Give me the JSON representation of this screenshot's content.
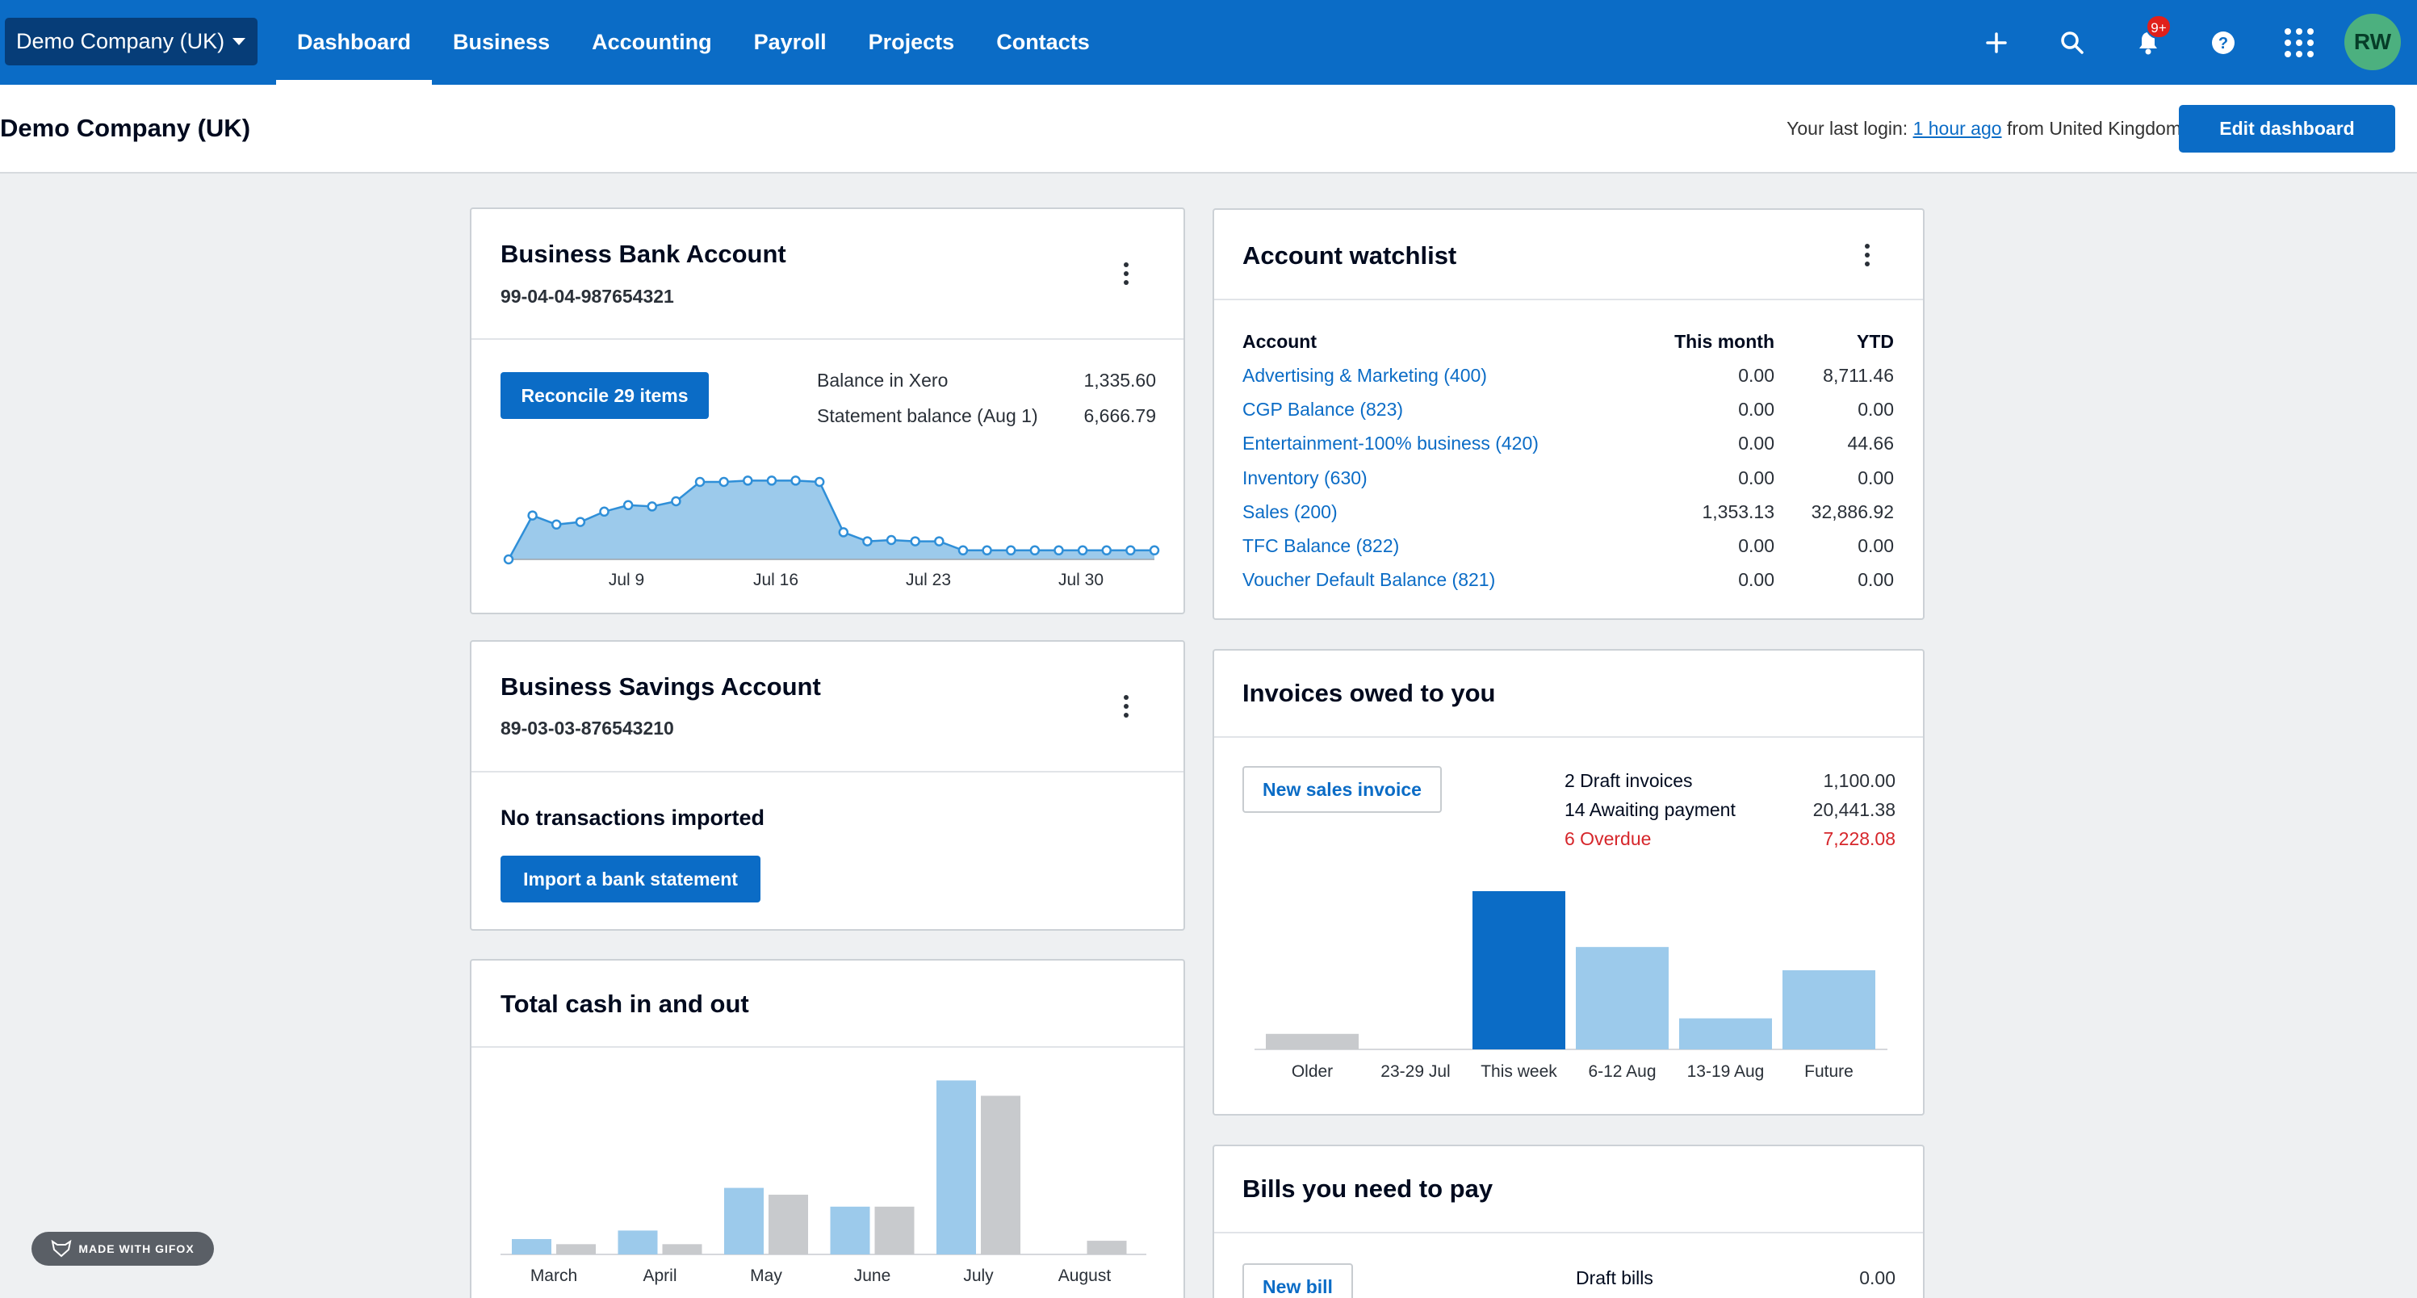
{
  "topnav": {
    "org_name": "Demo Company (UK)",
    "links": [
      "Dashboard",
      "Business",
      "Accounting",
      "Payroll",
      "Projects",
      "Contacts"
    ],
    "notifications_badge": "9+",
    "avatar_initials": "RW"
  },
  "subheader": {
    "title": "Demo Company (UK)",
    "last_login_prefix": "Your last login:",
    "last_login_link": "1 hour ago",
    "last_login_suffix": "from United Kingdom",
    "edit_button": "Edit dashboard"
  },
  "bank_account": {
    "title": "Business Bank Account",
    "number": "99-04-04-987654321",
    "reconcile_button": "Reconcile 29 items",
    "balance_xero_label": "Balance in Xero",
    "balance_xero_value": "1,335.60",
    "statement_label": "Statement balance (Aug 1)",
    "statement_value": "6,666.79",
    "chart_xlabels": [
      "Jul 9",
      "Jul 16",
      "Jul 23",
      "Jul 30"
    ]
  },
  "savings_account": {
    "title": "Business Savings Account",
    "number": "89-03-03-876543210",
    "empty_text": "No transactions imported",
    "import_button": "Import a bank statement"
  },
  "cash": {
    "title": "Total cash in and out"
  },
  "watchlist": {
    "title": "Account watchlist",
    "headers": [
      "Account",
      "This month",
      "YTD"
    ],
    "rows": [
      {
        "account": "Advertising & Marketing (400)",
        "month": "0.00",
        "ytd": "8,711.46"
      },
      {
        "account": "CGP Balance (823)",
        "month": "0.00",
        "ytd": "0.00"
      },
      {
        "account": "Entertainment-100% business (420)",
        "month": "0.00",
        "ytd": "44.66"
      },
      {
        "account": "Inventory (630)",
        "month": "0.00",
        "ytd": "0.00"
      },
      {
        "account": "Sales (200)",
        "month": "1,353.13",
        "ytd": "32,886.92"
      },
      {
        "account": "TFC Balance (822)",
        "month": "0.00",
        "ytd": "0.00"
      },
      {
        "account": "Voucher Default Balance (821)",
        "month": "0.00",
        "ytd": "0.00"
      }
    ]
  },
  "invoices": {
    "title": "Invoices owed to you",
    "new_button": "New sales invoice",
    "draft_label": "2 Draft invoices",
    "draft_value": "1,100.00",
    "awaiting_label": "14 Awaiting payment",
    "awaiting_value": "20,441.38",
    "overdue_label": "6 Overdue",
    "overdue_value": "7,228.08"
  },
  "bills": {
    "title": "Bills you need to pay",
    "new_button": "New bill",
    "draft_label": "Draft bills",
    "draft_value": "0.00"
  },
  "gifox": "MADE WITH GIFOX",
  "colors": {
    "nav_blue": "#0b6cc6",
    "org_switch": "#063d78",
    "light_blue_bar": "#9ccaeb",
    "grey_bar": "#c8cacd",
    "overdue_red": "#d6262b",
    "avatar_green": "#4cb07f"
  },
  "chart_data": [
    {
      "type": "area",
      "x": [
        "Jul 5",
        "Jul 6",
        "Jul 7",
        "Jul 8",
        "Jul 9",
        "Jul 10",
        "Jul 11",
        "Jul 12",
        "Jul 13",
        "Jul 14",
        "Jul 15",
        "Jul 16",
        "Jul 17",
        "Jul 18",
        "Jul 19",
        "Jul 20",
        "Jul 21",
        "Jul 22",
        "Jul 23",
        "Jul 24",
        "Jul 25",
        "Jul 26",
        "Jul 27",
        "Jul 28",
        "Jul 29",
        "Jul 30",
        "Jul 31",
        "Aug 1"
      ],
      "values": [
        0,
        34,
        27,
        29,
        37,
        42,
        41,
        45,
        60,
        60,
        61,
        61,
        61,
        60,
        21,
        14,
        15,
        14,
        14,
        7,
        7,
        7,
        7,
        7,
        7,
        7,
        7,
        7
      ],
      "xticks": [
        "Jul 9",
        "Jul 16",
        "Jul 23",
        "Jul 30"
      ]
    },
    {
      "type": "bar",
      "categories": [
        "March",
        "April",
        "May",
        "June",
        "July",
        "August"
      ],
      "series": [
        {
          "values": [
            9,
            14,
            39,
            28,
            102,
            0
          ]
        },
        {
          "values": [
            6,
            6,
            35,
            28,
            93,
            8
          ]
        }
      ]
    },
    {
      "type": "bar",
      "categories": [
        "Older",
        "23-29 Jul",
        "This week",
        "6-12 Aug",
        "13-19 Aug",
        "Future"
      ],
      "values": [
        10,
        0,
        102,
        66,
        20,
        51
      ]
    }
  ]
}
